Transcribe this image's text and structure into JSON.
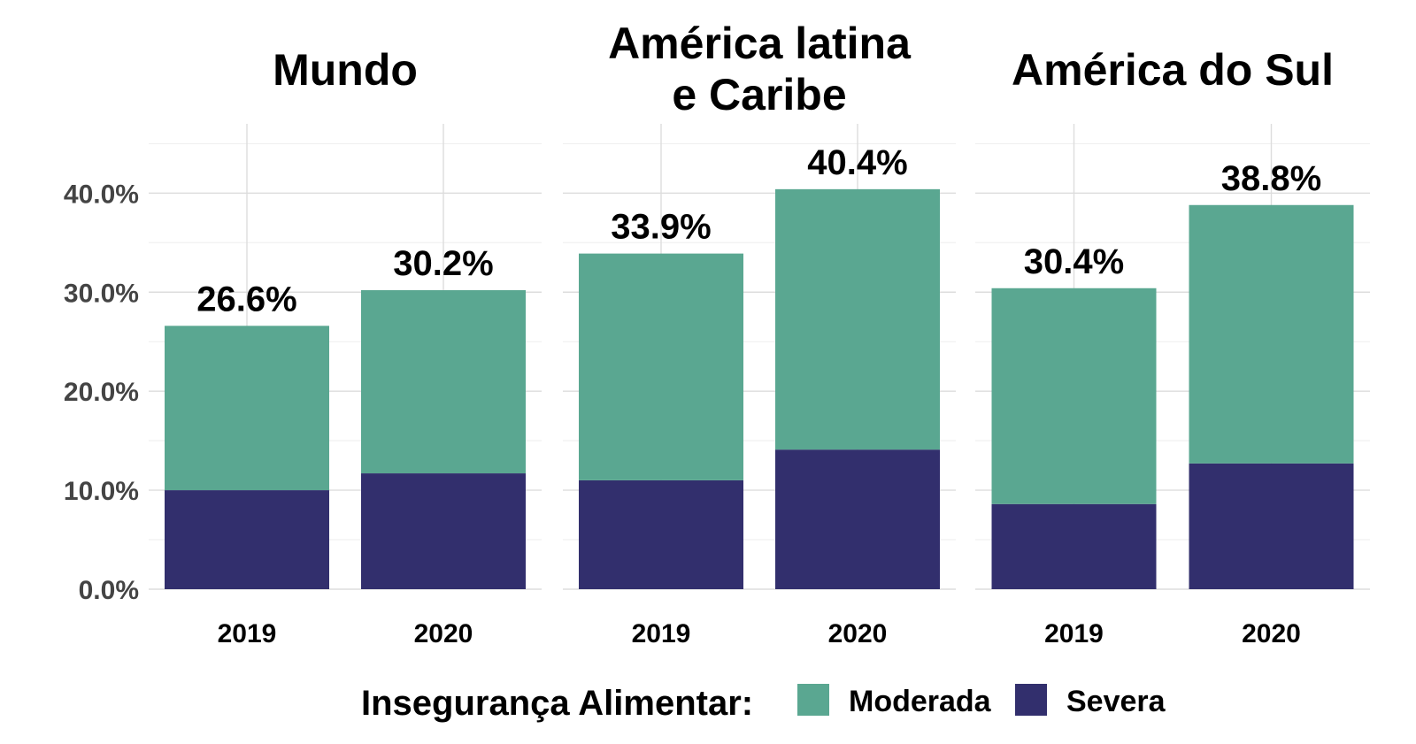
{
  "chart_data": {
    "type": "bar",
    "stacked": true,
    "ylim": [
      0,
      47
    ],
    "yticks": [
      "0.0%",
      "10.0%",
      "20.0%",
      "30.0%",
      "40.0%"
    ],
    "ytick_values": [
      0,
      10,
      20,
      30,
      40
    ],
    "grid": true,
    "legend": {
      "title": "Insegurança Alimentar:",
      "position": "bottom",
      "items": [
        {
          "label": "Moderada",
          "color": "#5aa791"
        },
        {
          "label": "Severa",
          "color": "#322f6d"
        }
      ]
    },
    "panels": [
      {
        "title": [
          "Mundo"
        ],
        "categories": [
          "2019",
          "2020"
        ],
        "series": [
          {
            "name": "Severa",
            "values": [
              10.0,
              11.7
            ]
          },
          {
            "name": "Moderada",
            "values": [
              16.6,
              18.5
            ]
          }
        ],
        "totals": [
          26.6,
          30.2
        ],
        "total_labels": [
          "26.6%",
          "30.2%"
        ]
      },
      {
        "title": [
          "América latina",
          "e Caribe"
        ],
        "categories": [
          "2019",
          "2020"
        ],
        "series": [
          {
            "name": "Severa",
            "values": [
              11.0,
              14.1
            ]
          },
          {
            "name": "Moderada",
            "values": [
              22.9,
              26.3
            ]
          }
        ],
        "totals": [
          33.9,
          40.4
        ],
        "total_labels": [
          "33.9%",
          "40.4%"
        ]
      },
      {
        "title": [
          "América do Sul"
        ],
        "categories": [
          "2019",
          "2020"
        ],
        "series": [
          {
            "name": "Severa",
            "values": [
              8.6,
              12.7
            ]
          },
          {
            "name": "Moderada",
            "values": [
              21.8,
              26.1
            ]
          }
        ],
        "totals": [
          30.4,
          38.8
        ],
        "total_labels": [
          "30.4%",
          "38.8%"
        ]
      }
    ]
  }
}
